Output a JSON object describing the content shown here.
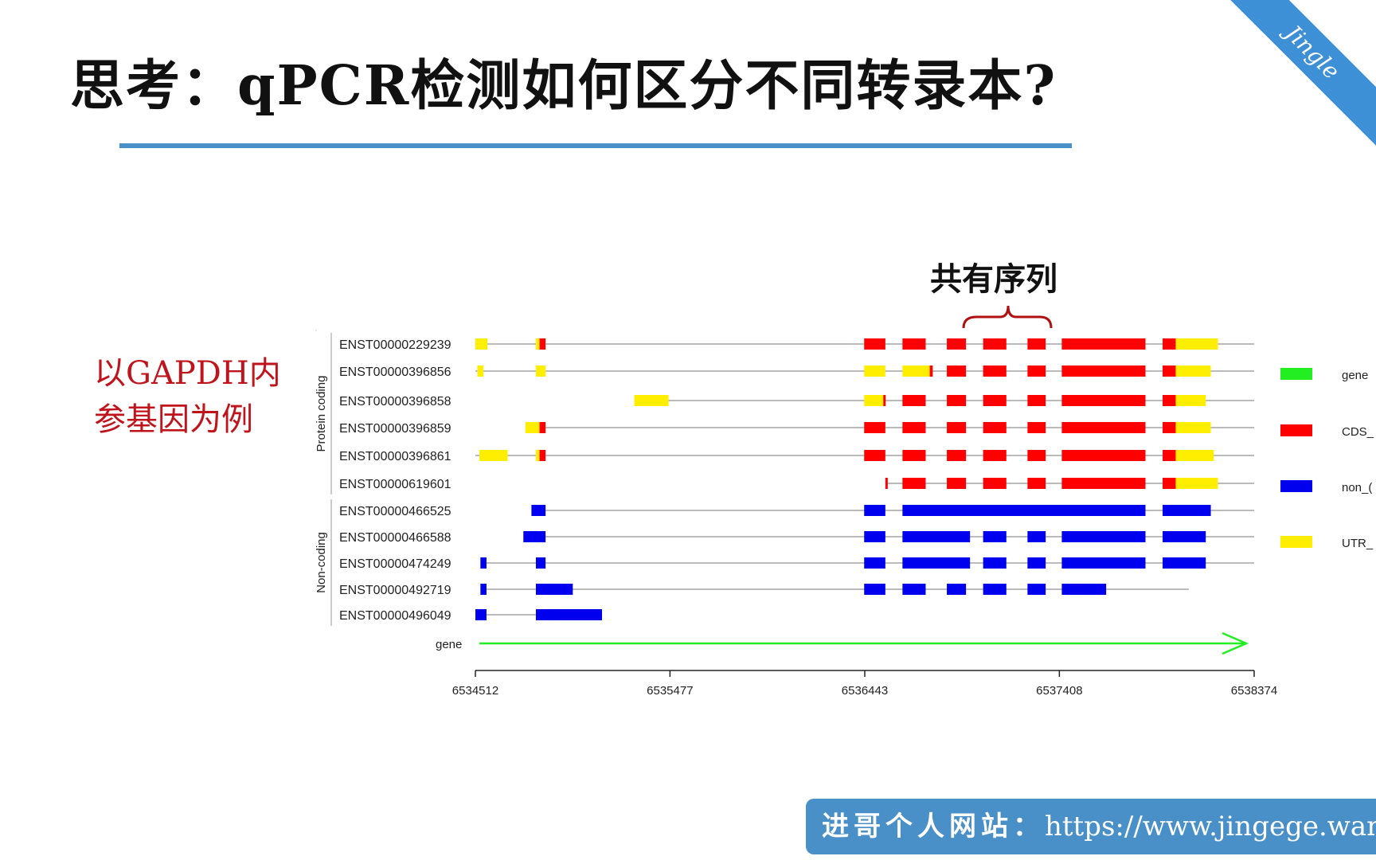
{
  "slide": {
    "title": "思考：qPCR检测如何区分不同转录本?",
    "corner_ribbon_text": "Jingle",
    "side_note_lines": [
      "以GAPDH内",
      "参基因为例"
    ],
    "shared_sequence_label": "共有序列",
    "footer_prefix": "进哥个人网站：",
    "footer_url": "https://www.jingege.wang"
  },
  "colors": {
    "cds": "#ff0000",
    "utr": "#ffee00",
    "non_coding": "#0000ee",
    "gene": "#22ee22",
    "accent_blue": "#4a90c8",
    "note_red": "#c0141c"
  },
  "chart_data": {
    "type": "gene-structure",
    "axis": {
      "min": 6534512,
      "max": 6538374,
      "ticks": [
        "6534512",
        "6535477",
        "6536443",
        "6537408",
        "6538374"
      ]
    },
    "groups": [
      {
        "label": "Protein coding",
        "tracks": [
          0,
          5
        ]
      },
      {
        "label": "Non-coding",
        "tracks": [
          6,
          10
        ]
      }
    ],
    "legend": [
      {
        "label": "gene",
        "color": "#22ee22"
      },
      {
        "label": "CDS_",
        "color": "#ff0000"
      },
      {
        "label": "non_(",
        "color": "#0000ee"
      },
      {
        "label": "UTR_",
        "color": "#ffee00"
      }
    ],
    "gene_label": "gene",
    "transcripts": [
      {
        "id": "ENST00000229239",
        "line": [
          6534512,
          6538374
        ],
        "exons": [
          [
            6534512,
            6534572,
            "utr"
          ],
          [
            6534812,
            6534830,
            "utr"
          ],
          [
            6534830,
            6534860,
            "cds"
          ],
          [
            6536440,
            6536545,
            "cds"
          ],
          [
            6536630,
            6536745,
            "cds"
          ],
          [
            6536850,
            6536945,
            "cds"
          ],
          [
            6537030,
            6537145,
            "cds"
          ],
          [
            6537250,
            6537340,
            "cds"
          ],
          [
            6537420,
            6537835,
            "cds"
          ],
          [
            6537920,
            6537985,
            "cds"
          ],
          [
            6537985,
            6538194,
            "utr"
          ]
        ]
      },
      {
        "id": "ENST00000396856",
        "line": [
          6534512,
          6538374
        ],
        "exons": [
          [
            6534522,
            6534552,
            "utr"
          ],
          [
            6534812,
            6534860,
            "utr"
          ],
          [
            6536440,
            6536545,
            "utr"
          ],
          [
            6536630,
            6536765,
            "utr"
          ],
          [
            6536765,
            6536780,
            "cds"
          ],
          [
            6536850,
            6536945,
            "cds"
          ],
          [
            6537030,
            6537145,
            "cds"
          ],
          [
            6537250,
            6537340,
            "cds"
          ],
          [
            6537420,
            6537835,
            "cds"
          ],
          [
            6537920,
            6537985,
            "cds"
          ],
          [
            6537985,
            6538159,
            "utr"
          ]
        ]
      },
      {
        "id": "ENST00000396858",
        "line": [
          6535300,
          6538374
        ],
        "exons": [
          [
            6535300,
            6535470,
            "utr"
          ],
          [
            6536440,
            6536535,
            "utr"
          ],
          [
            6536535,
            6536545,
            "cds"
          ],
          [
            6536630,
            6536745,
            "cds"
          ],
          [
            6536850,
            6536945,
            "cds"
          ],
          [
            6537030,
            6537145,
            "cds"
          ],
          [
            6537250,
            6537340,
            "cds"
          ],
          [
            6537420,
            6537835,
            "cds"
          ],
          [
            6537920,
            6537985,
            "cds"
          ],
          [
            6537985,
            6538134,
            "utr"
          ]
        ]
      },
      {
        "id": "ENST00000396859",
        "line": [
          6534760,
          6538374
        ],
        "exons": [
          [
            6534760,
            6534830,
            "utr"
          ],
          [
            6534830,
            6534860,
            "cds"
          ],
          [
            6536440,
            6536545,
            "cds"
          ],
          [
            6536630,
            6536745,
            "cds"
          ],
          [
            6536850,
            6536945,
            "cds"
          ],
          [
            6537030,
            6537145,
            "cds"
          ],
          [
            6537250,
            6537340,
            "cds"
          ],
          [
            6537420,
            6537835,
            "cds"
          ],
          [
            6537920,
            6537985,
            "cds"
          ],
          [
            6537985,
            6538159,
            "utr"
          ]
        ]
      },
      {
        "id": "ENST00000396861",
        "line": [
          6534512,
          6538374
        ],
        "exons": [
          [
            6534532,
            6534672,
            "utr"
          ],
          [
            6534812,
            6534830,
            "utr"
          ],
          [
            6534830,
            6534860,
            "cds"
          ],
          [
            6536440,
            6536545,
            "cds"
          ],
          [
            6536630,
            6536745,
            "cds"
          ],
          [
            6536850,
            6536945,
            "cds"
          ],
          [
            6537030,
            6537145,
            "cds"
          ],
          [
            6537250,
            6537340,
            "cds"
          ],
          [
            6537420,
            6537835,
            "cds"
          ],
          [
            6537920,
            6537985,
            "cds"
          ],
          [
            6537985,
            6538174,
            "utr"
          ]
        ]
      },
      {
        "id": "ENST00000619601",
        "line": [
          6536545,
          6538374
        ],
        "exons": [
          [
            6536545,
            6536552,
            "cds"
          ],
          [
            6536630,
            6536745,
            "cds"
          ],
          [
            6536850,
            6536945,
            "cds"
          ],
          [
            6537030,
            6537145,
            "cds"
          ],
          [
            6537250,
            6537340,
            "cds"
          ],
          [
            6537420,
            6537835,
            "cds"
          ],
          [
            6537920,
            6537985,
            "cds"
          ],
          [
            6537985,
            6538194,
            "utr"
          ]
        ]
      },
      {
        "id": "ENST00000466525",
        "line": [
          6534790,
          6538374
        ],
        "exons": [
          [
            6534790,
            6534860,
            "nc"
          ],
          [
            6536440,
            6536545,
            "nc"
          ],
          [
            6536630,
            6537835,
            "nc"
          ],
          [
            6537920,
            6538159,
            "nc"
          ]
        ]
      },
      {
        "id": "ENST00000466588",
        "line": [
          6534750,
          6538374
        ],
        "exons": [
          [
            6534750,
            6534860,
            "nc"
          ],
          [
            6536440,
            6536545,
            "nc"
          ],
          [
            6536630,
            6536965,
            "nc"
          ],
          [
            6537030,
            6537145,
            "nc"
          ],
          [
            6537250,
            6537340,
            "nc"
          ],
          [
            6537420,
            6537835,
            "nc"
          ],
          [
            6537920,
            6538134,
            "nc"
          ]
        ]
      },
      {
        "id": "ENST00000474249",
        "line": [
          6534537,
          6538374
        ],
        "exons": [
          [
            6534537,
            6534567,
            "nc"
          ],
          [
            6534812,
            6534860,
            "nc"
          ],
          [
            6536440,
            6536545,
            "nc"
          ],
          [
            6536630,
            6536965,
            "nc"
          ],
          [
            6537030,
            6537145,
            "nc"
          ],
          [
            6537250,
            6537340,
            "nc"
          ],
          [
            6537420,
            6537835,
            "nc"
          ],
          [
            6537920,
            6538134,
            "nc"
          ]
        ]
      },
      {
        "id": "ENST00000492719",
        "line": [
          6534537,
          6538050
        ],
        "exons": [
          [
            6534537,
            6534567,
            "nc"
          ],
          [
            6534812,
            6534995,
            "nc"
          ],
          [
            6536440,
            6536545,
            "nc"
          ],
          [
            6536630,
            6536745,
            "nc"
          ],
          [
            6536850,
            6536945,
            "nc"
          ],
          [
            6537030,
            6537145,
            "nc"
          ],
          [
            6537250,
            6537340,
            "nc"
          ],
          [
            6537420,
            6537640,
            "nc"
          ]
        ]
      },
      {
        "id": "ENST00000496049",
        "line": [
          6534512,
          6535140
        ],
        "exons": [
          [
            6534512,
            6534567,
            "nc"
          ],
          [
            6534812,
            6535140,
            "nc"
          ]
        ]
      }
    ]
  }
}
